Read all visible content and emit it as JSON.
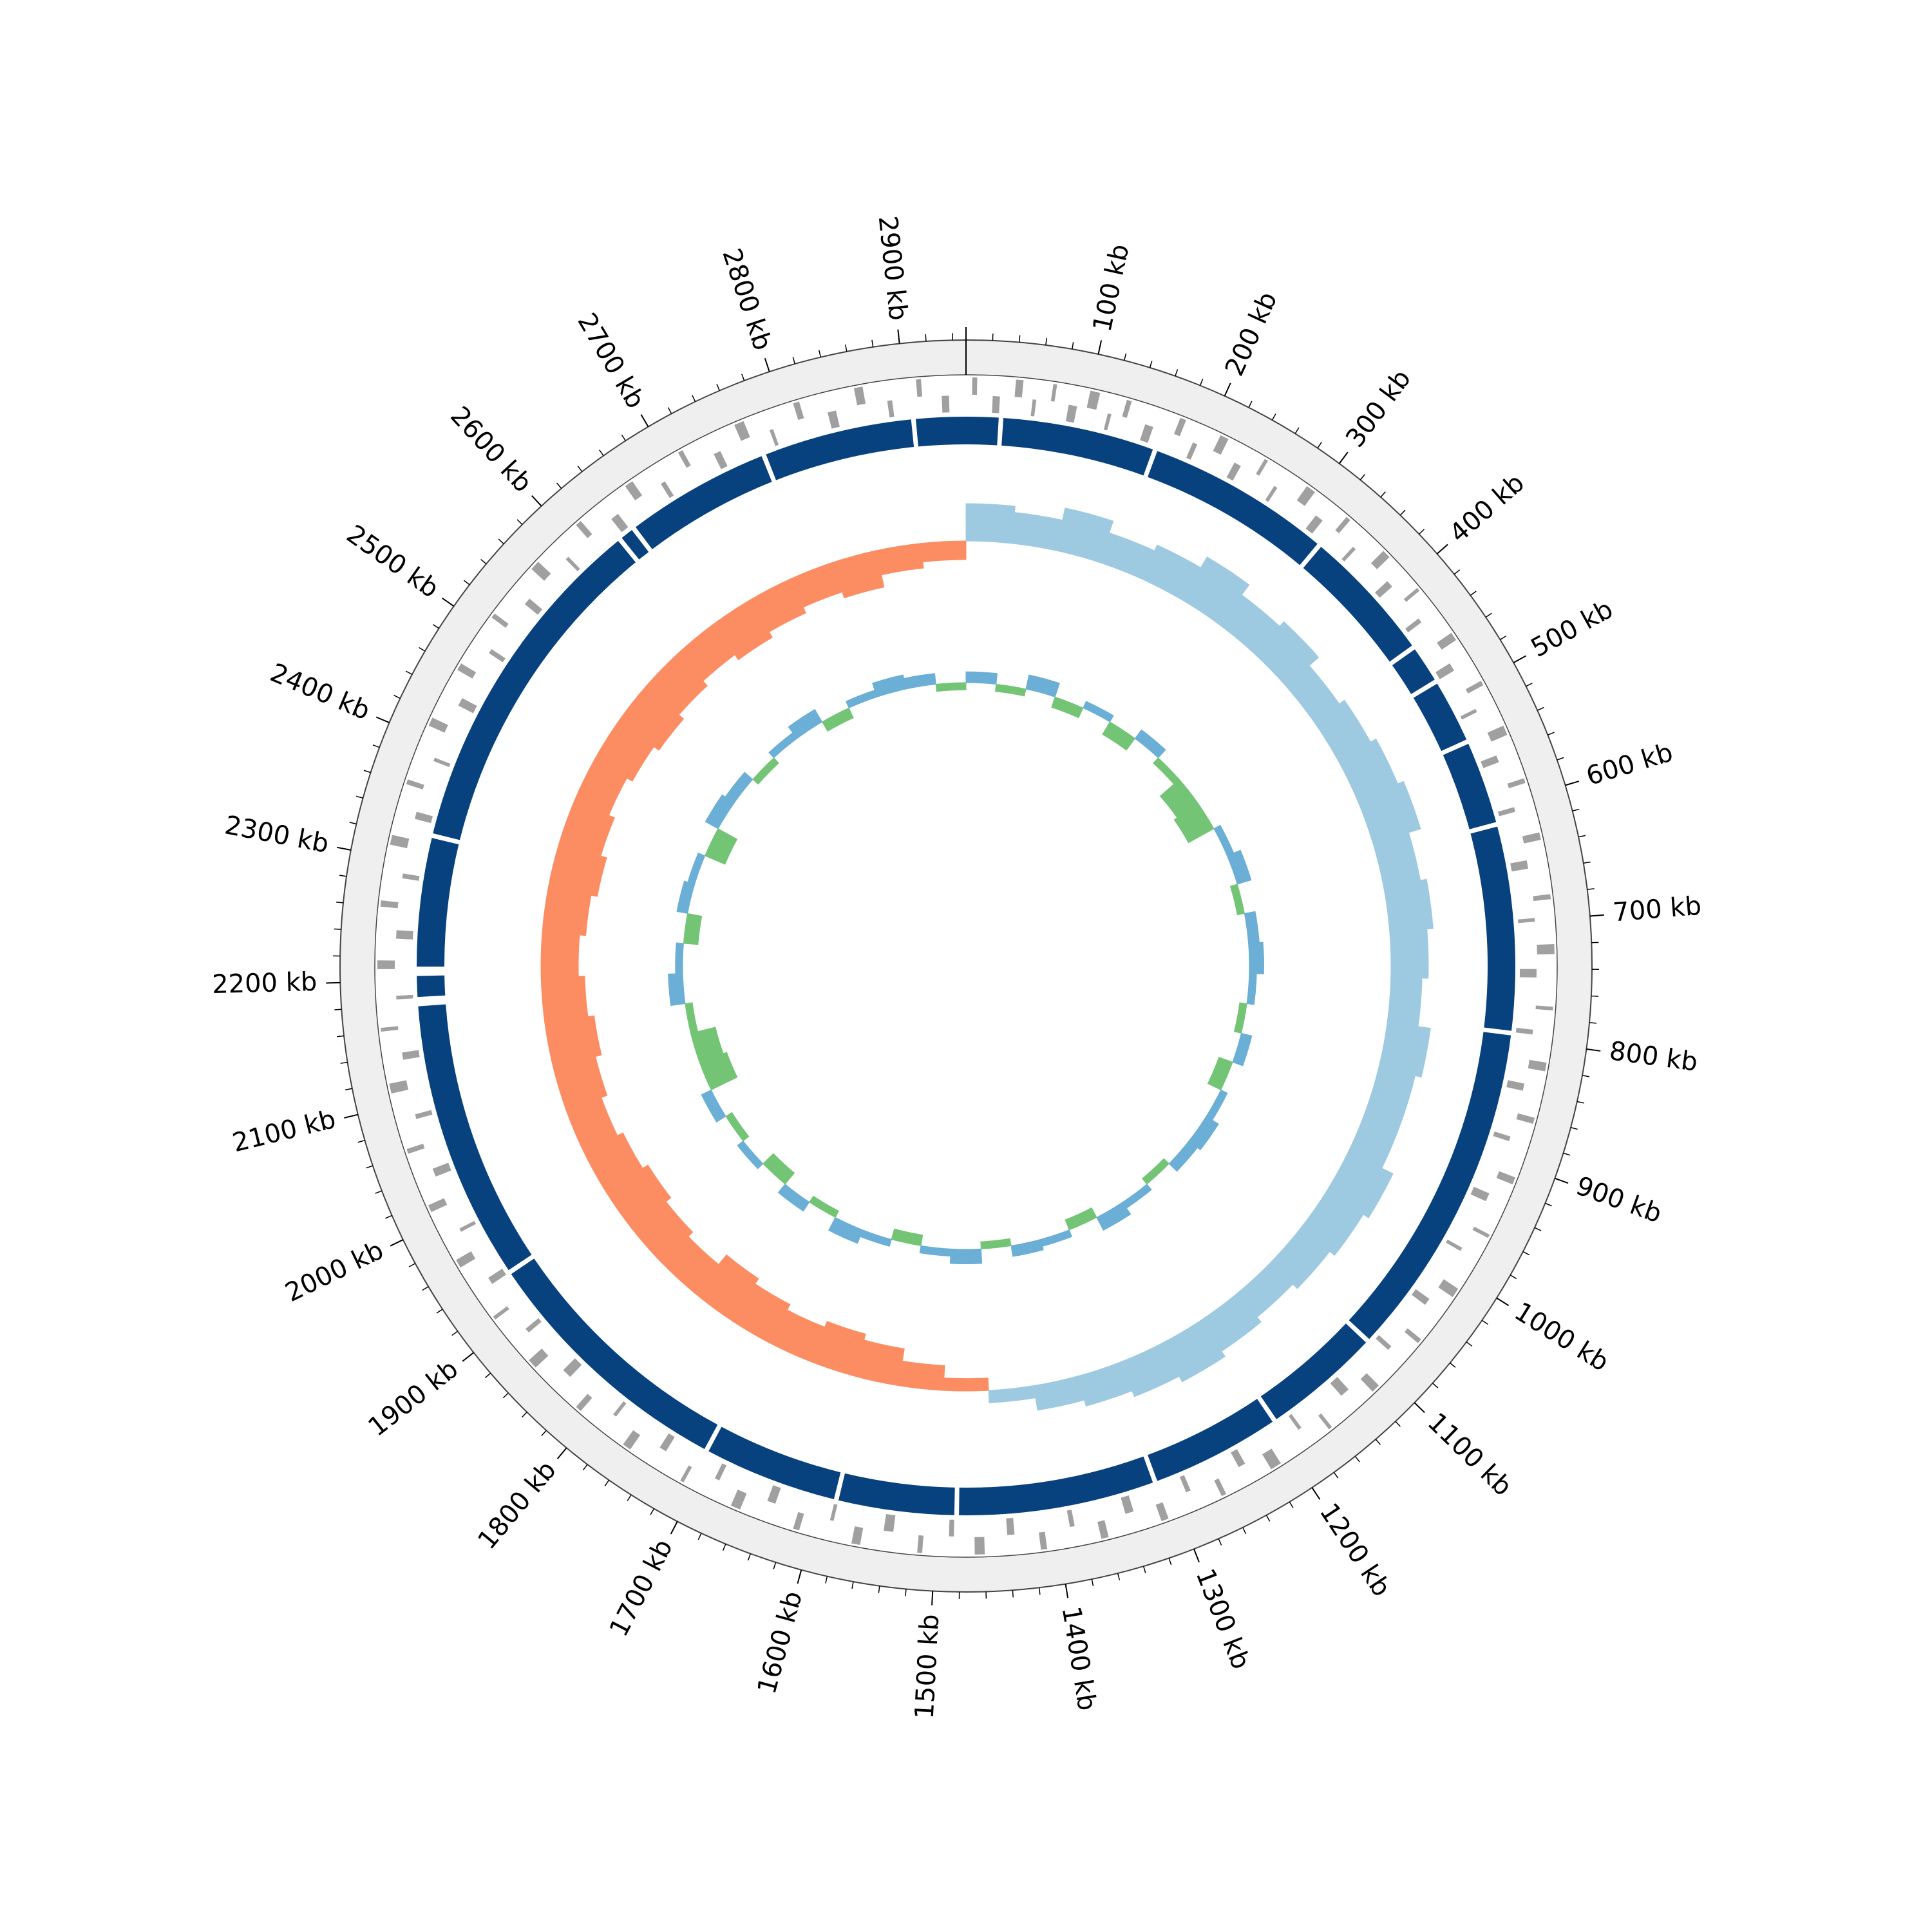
{
  "chart_data": {
    "type": "circular-genome",
    "genome_length": 2950,
    "ticks": [
      {
        "value": 100,
        "label": "100 kb"
      },
      {
        "value": 200,
        "label": "200 kb"
      },
      {
        "value": 300,
        "label": "300 kb"
      },
      {
        "value": 400,
        "label": "400 kb"
      },
      {
        "value": 500,
        "label": "500 kb"
      },
      {
        "value": 600,
        "label": "600 kb"
      },
      {
        "value": 700,
        "label": "700 kb"
      },
      {
        "value": 800,
        "label": "800 kb"
      },
      {
        "value": 900,
        "label": "900 kb"
      },
      {
        "value": 1000,
        "label": "1000 kb"
      },
      {
        "value": 1100,
        "label": "1100 kb"
      },
      {
        "value": 1200,
        "label": "1200 kb"
      },
      {
        "value": 1300,
        "label": "1300 kb"
      },
      {
        "value": 1400,
        "label": "1400 kb"
      },
      {
        "value": 1500,
        "label": "1500 kb"
      },
      {
        "value": 1600,
        "label": "1600 kb"
      },
      {
        "value": 1700,
        "label": "1700 kb"
      },
      {
        "value": 1800,
        "label": "1800 kb"
      },
      {
        "value": 1900,
        "label": "1900 kb"
      },
      {
        "value": 2000,
        "label": "2000 kb"
      },
      {
        "value": 2100,
        "label": "2100 kb"
      },
      {
        "value": 2200,
        "label": "2200 kb"
      },
      {
        "value": 2300,
        "label": "2300 kb"
      },
      {
        "value": 2400,
        "label": "2400 kb"
      },
      {
        "value": 2500,
        "label": "2500 kb"
      },
      {
        "value": 2600,
        "label": "2600 kb"
      },
      {
        "value": 2700,
        "label": "2700 kb"
      },
      {
        "value": 2800,
        "label": "2800 kb"
      },
      {
        "value": 2900,
        "label": "2900 kb"
      }
    ],
    "minor_tick_interval": 20,
    "forward_genes": {
      "color": "#a0a0a0",
      "intervals": [
        [
          5,
          9
        ],
        [
          40,
          46
        ],
        [
          70,
          73
        ],
        [
          100,
          108
        ],
        [
          130,
          134
        ],
        [
          175,
          180
        ],
        [
          210,
          217
        ],
        [
          250,
          253
        ],
        [
          290,
          298
        ],
        [
          330,
          334
        ],
        [
          370,
          377
        ],
        [
          410,
          413
        ],
        [
          455,
          462
        ],
        [
          500,
          504
        ],
        [
          540,
          548
        ],
        [
          585,
          589
        ],
        [
          630,
          636
        ],
        [
          680,
          684
        ],
        [
          720,
          728
        ],
        [
          770,
          773
        ],
        [
          815,
          822
        ],
        [
          860,
          865
        ],
        [
          910,
          916
        ],
        [
          960,
          963
        ],
        [
          1010,
          1018
        ],
        [
          1060,
          1064
        ],
        [
          1110,
          1117
        ],
        [
          1160,
          1163
        ],
        [
          1210,
          1219
        ],
        [
          1260,
          1264
        ],
        [
          1310,
          1316
        ],
        [
          1360,
          1366
        ],
        [
          1410,
          1415
        ],
        [
          1460,
          1468
        ],
        [
          1510,
          1514
        ],
        [
          1560,
          1567
        ],
        [
          1610,
          1615
        ],
        [
          1660,
          1668
        ],
        [
          1710,
          1713
        ],
        [
          1760,
          1767
        ],
        [
          1810,
          1815
        ],
        [
          1860,
          1868
        ],
        [
          1910,
          1913
        ],
        [
          1960,
          1967
        ],
        [
          2010,
          2016
        ],
        [
          2060,
          2064
        ],
        [
          2110,
          2118
        ],
        [
          2160,
          2163
        ],
        [
          2210,
          2217
        ],
        [
          2260,
          2265
        ],
        [
          2310,
          2318
        ],
        [
          2360,
          2364
        ],
        [
          2410,
          2417
        ],
        [
          2460,
          2466
        ],
        [
          2510,
          2514
        ],
        [
          2560,
          2568
        ],
        [
          2610,
          2615
        ],
        [
          2660,
          2667
        ],
        [
          2710,
          2714
        ],
        [
          2760,
          2768
        ],
        [
          2810,
          2815
        ],
        [
          2860,
          2867
        ],
        [
          2910,
          2914
        ]
      ]
    },
    "reverse_genes": {
      "color": "#a0a0a0",
      "intervals": [
        [
          22,
          28
        ],
        [
          55,
          58
        ],
        [
          85,
          92
        ],
        [
          118,
          121
        ],
        [
          150,
          157
        ],
        [
          192,
          196
        ],
        [
          230,
          236
        ],
        [
          268,
          271
        ],
        [
          310,
          317
        ],
        [
          350,
          353
        ],
        [
          390,
          396
        ],
        [
          430,
          434
        ],
        [
          475,
          482
        ],
        [
          518,
          521
        ],
        [
          560,
          566
        ],
        [
          605,
          609
        ],
        [
          650,
          657
        ],
        [
          698,
          701
        ],
        [
          740,
          747
        ],
        [
          790,
          794
        ],
        [
          835,
          841
        ],
        [
          880,
          884
        ],
        [
          930,
          937
        ],
        [
          980,
          983
        ],
        [
          1030,
          1036
        ],
        [
          1080,
          1084
        ],
        [
          1130,
          1138
        ],
        [
          1180,
          1183
        ],
        [
          1235,
          1241
        ],
        [
          1285,
          1289
        ],
        [
          1335,
          1342
        ],
        [
          1385,
          1389
        ],
        [
          1435,
          1441
        ],
        [
          1485,
          1489
        ],
        [
          1535,
          1543
        ],
        [
          1585,
          1588
        ],
        [
          1635,
          1642
        ],
        [
          1685,
          1689
        ],
        [
          1735,
          1741
        ],
        [
          1785,
          1788
        ],
        [
          1835,
          1843
        ],
        [
          1885,
          1889
        ],
        [
          1935,
          1941
        ],
        [
          1985,
          1988
        ],
        [
          2035,
          2042
        ],
        [
          2085,
          2089
        ],
        [
          2135,
          2141
        ],
        [
          2185,
          2188
        ],
        [
          2235,
          2242
        ],
        [
          2285,
          2289
        ],
        [
          2335,
          2341
        ],
        [
          2385,
          2388
        ],
        [
          2435,
          2442
        ],
        [
          2485,
          2489
        ],
        [
          2535,
          2541
        ],
        [
          2585,
          2588
        ],
        [
          2635,
          2642
        ],
        [
          2685,
          2689
        ],
        [
          2735,
          2741
        ],
        [
          2785,
          2788
        ],
        [
          2835,
          2842
        ],
        [
          2885,
          2889
        ],
        [
          2930,
          2936
        ]
      ]
    },
    "segments": {
      "color": "#08427e",
      "intervals": [
        [
          0,
          28
        ],
        [
          32,
          163
        ],
        [
          167,
          326
        ],
        [
          330,
          445
        ],
        [
          449,
          480
        ],
        [
          484,
          538
        ],
        [
          542,
          613
        ],
        [
          617,
          793
        ],
        [
          797,
          1088
        ],
        [
          1092,
          1193
        ],
        [
          1197,
          1308
        ],
        [
          1312,
          1481
        ],
        [
          1485,
          1585
        ],
        [
          1589,
          1704
        ],
        [
          1708,
          1933
        ],
        [
          1937,
          2178
        ],
        [
          2186,
          2204
        ],
        [
          2212,
          2323
        ],
        [
          2327,
          2628
        ],
        [
          2632,
          2643
        ],
        [
          2647,
          2771
        ],
        [
          2775,
          2903
        ],
        [
          2907,
          2950
        ]
      ]
    },
    "x": [
      0,
      50,
      100,
      150,
      200,
      250,
      300,
      350,
      400,
      450,
      500,
      550,
      600,
      650,
      700,
      750,
      800,
      850,
      900,
      950,
      1000,
      1050,
      1100,
      1150,
      1200,
      1250,
      1300,
      1350,
      1400,
      1450,
      1500,
      1550,
      1600,
      1650,
      1700,
      1750,
      1800,
      1850,
      1900,
      1950,
      2000,
      2050,
      2100,
      2150,
      2200,
      2250,
      2300,
      2350,
      2400,
      2450,
      2500,
      2550,
      2600,
      2650,
      2700,
      2750,
      2800,
      2850,
      2900
    ],
    "gc_skew": {
      "positive_color": "#9ecae1",
      "negative_color": "#fc8d62",
      "lim": [
        -0.15,
        0.15
      ],
      "values": [
        0.06,
        0.05,
        0.07,
        0.05,
        0.06,
        0.08,
        0.06,
        0.07,
        0.05,
        0.06,
        0.07,
        0.08,
        0.06,
        0.07,
        0.06,
        0.05,
        0.07,
        0.06,
        0.06,
        0.08,
        0.07,
        0.06,
        0.05,
        0.06,
        0.07,
        0.06,
        0.05,
        0.04,
        0.02,
        -0.02,
        -0.04,
        -0.06,
        -0.07,
        -0.06,
        -0.07,
        -0.08,
        -0.06,
        -0.07,
        -0.08,
        -0.07,
        -0.06,
        -0.07,
        -0.08,
        -0.07,
        -0.06,
        -0.07,
        -0.08,
        -0.07,
        -0.06,
        -0.07,
        -0.08,
        -0.07,
        -0.06,
        -0.07,
        -0.06,
        -0.05,
        -0.06,
        -0.04,
        -0.03
      ]
    },
    "gc_content": {
      "positive_color": "#6baed6",
      "negative_color": "#74c476",
      "lim": [
        -8,
        8
      ],
      "values": [
        1.5,
        -1,
        2,
        -1.5,
        1,
        -2,
        1.5,
        -1,
        -3.5,
        -4,
        1,
        2,
        -1,
        1.5,
        2,
        1,
        -1,
        1.5,
        -2,
        1,
        2,
        1.5,
        -1,
        1,
        2,
        -1.5,
        1,
        1.5,
        -1,
        2,
        1,
        -1.5,
        1,
        2,
        -1,
        1.5,
        -2,
        1,
        -1,
        1.5,
        -4,
        -3.5,
        -1,
        2,
        1,
        -2,
        1.5,
        1,
        -3,
        2,
        1.5,
        -1,
        1,
        2,
        -1.5,
        1,
        2,
        1.5,
        -1
      ]
    }
  }
}
